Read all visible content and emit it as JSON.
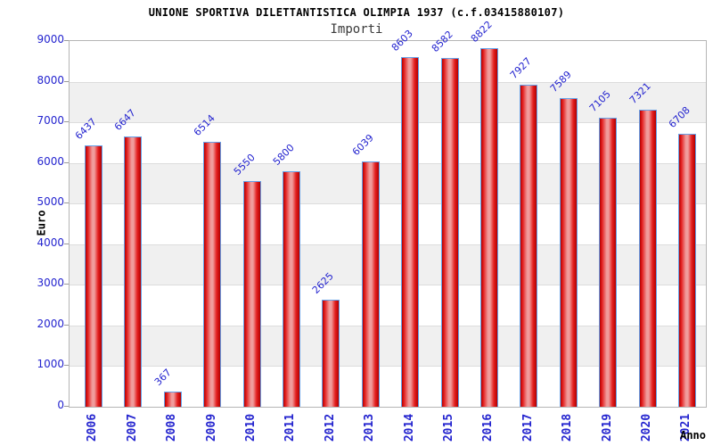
{
  "chart_data": {
    "type": "bar",
    "title": "UNIONE SPORTIVA DILETTANTISTICA OLIMPIA 1937 (c.f.03415880107)",
    "subtitle": "Importi",
    "xlabel": "Anno",
    "ylabel": "Euro",
    "categories": [
      "2006",
      "2007",
      "2008",
      "2009",
      "2010",
      "2011",
      "2012",
      "2013",
      "2014",
      "2015",
      "2016",
      "2017",
      "2018",
      "2019",
      "2020",
      "2021"
    ],
    "values": [
      6437,
      6647,
      367,
      6514,
      5550,
      5800,
      2625,
      6039,
      8603,
      8582,
      8822,
      7927,
      7589,
      7105,
      7321,
      6708
    ],
    "ylim": [
      0,
      9000
    ],
    "yticks": [
      0,
      1000,
      2000,
      3000,
      4000,
      5000,
      6000,
      7000,
      8000,
      9000
    ],
    "grid": "horizontal alternating bands, gridline each 1000",
    "legend": "none",
    "value_label_rotation_deg": -45,
    "x_tick_rotation_deg": -90,
    "colors": {
      "bar_edge": "#b20000",
      "bar_mid": "#e42020",
      "bar_highlight": "#f09c9c",
      "bar_border": "#64a0e8",
      "label_blue": "#2424cf",
      "band_gray": "#f0f0f0",
      "band_white": "#ffffff",
      "gridline": "#dcdcdc",
      "plot_border": "#b5b5b5",
      "subtitle_gray": "#3a3a3a",
      "axis_title_black": "#000000"
    }
  }
}
